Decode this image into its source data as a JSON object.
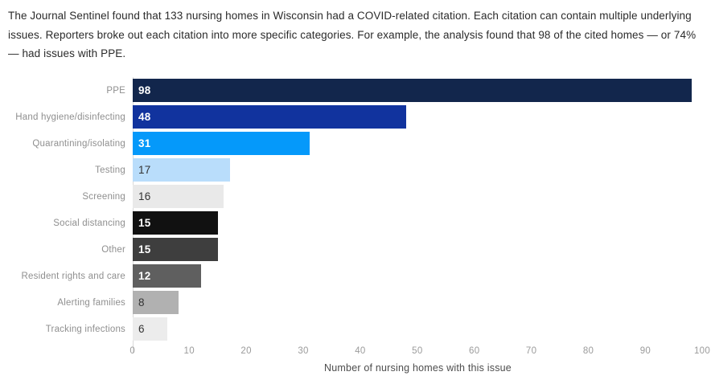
{
  "header": {
    "text": "The Journal Sentinel found that 133 nursing homes in Wisconsin had a COVID-related citation. Each citation can contain multiple underlying issues. Reporters broke out each citation into more specific categories. For example, the analysis found that 98 of the cited homes — or 74% — had issues with PPE."
  },
  "chart_data": {
    "type": "bar",
    "orientation": "horizontal",
    "title": "",
    "xlabel": "Number of nursing homes with this issue",
    "ylabel": "",
    "categories": [
      "PPE",
      "Hand hygiene/disinfecting",
      "Quarantining/isolating",
      "Testing",
      "Screening",
      "Social distancing",
      "Other",
      "Resident rights and care",
      "Alerting families",
      "Tracking infections"
    ],
    "values": [
      98,
      48,
      31,
      17,
      16,
      15,
      15,
      12,
      8,
      6
    ],
    "bar_colors": [
      "#12264c",
      "#11339e",
      "#0599fa",
      "#b9ddfb",
      "#e9e9e9",
      "#111111",
      "#3e3e3e",
      "#5f5f5f",
      "#b1b1b1",
      "#ececec"
    ],
    "value_label_colors": [
      "#ffffff",
      "#ffffff",
      "#ffffff",
      "#333333",
      "#333333",
      "#ffffff",
      "#ffffff",
      "#ffffff",
      "#333333",
      "#333333"
    ],
    "x_ticks": [
      0,
      10,
      20,
      30,
      40,
      50,
      60,
      70,
      80,
      90,
      100
    ],
    "xlim": [
      0,
      100
    ],
    "grid": false,
    "legend": false
  },
  "colors": {
    "header_text": "#2b2b2b",
    "category_label": "#8f8f8f",
    "tick_label": "#9b9b9b",
    "axis_title": "#4d4d4d",
    "axis_line": "#d9d9d9"
  }
}
